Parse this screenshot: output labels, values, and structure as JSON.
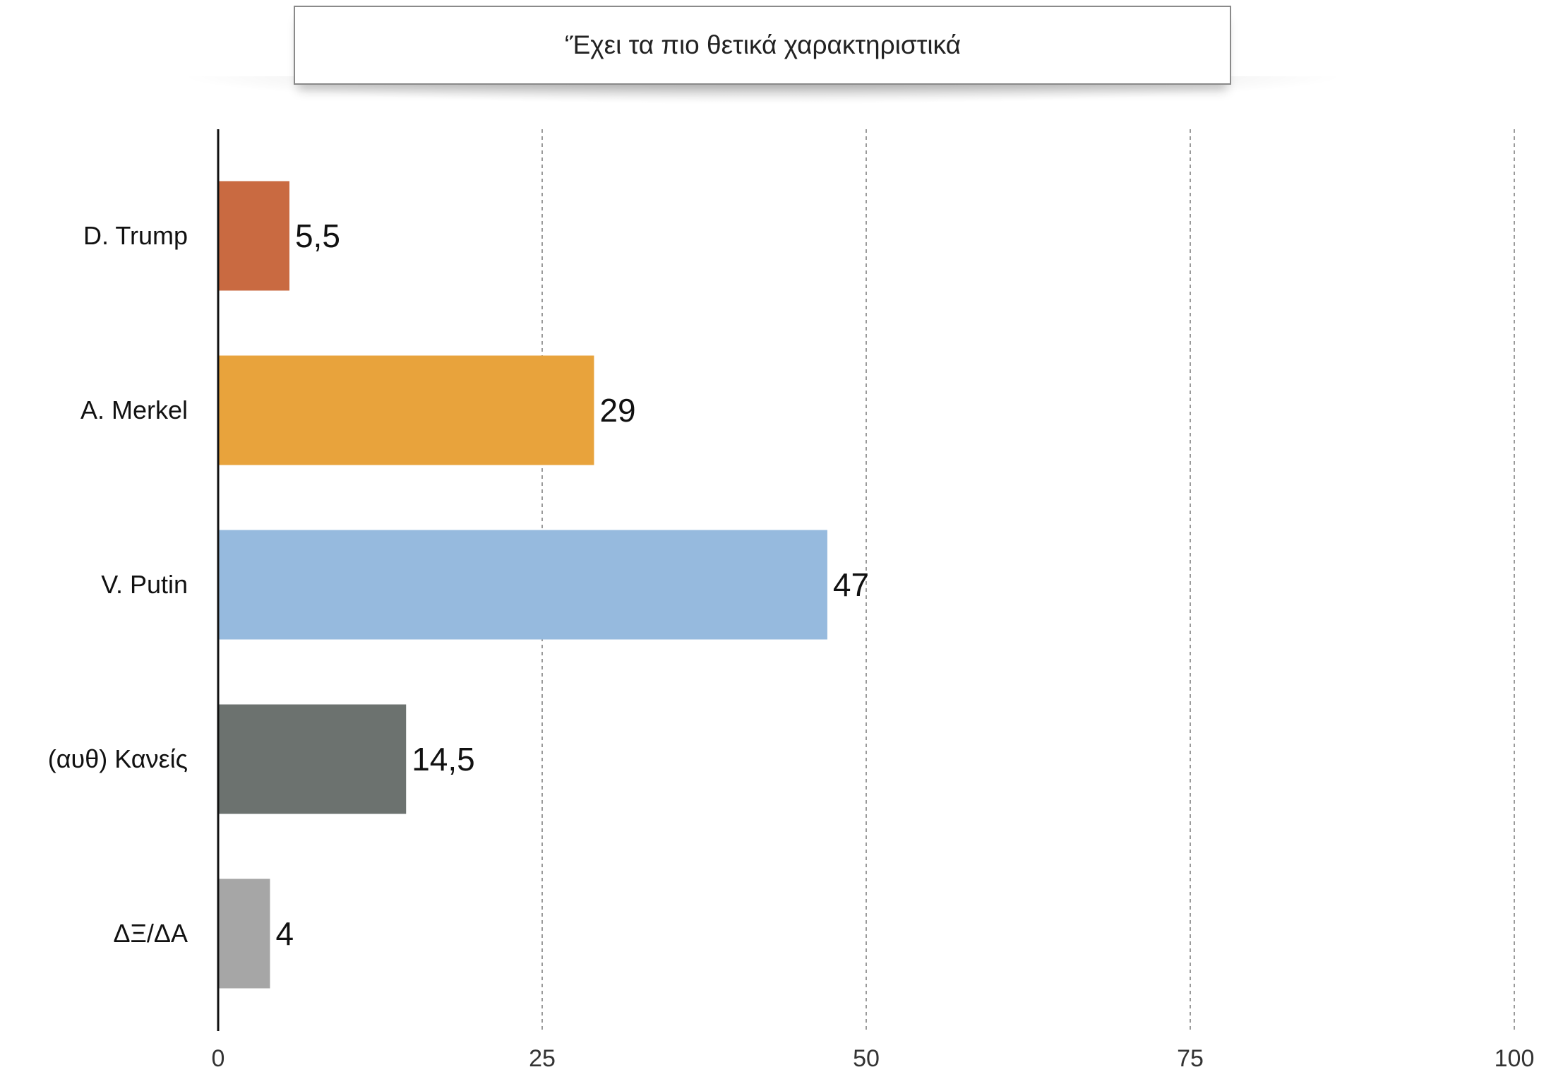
{
  "chart_data": {
    "type": "bar",
    "orientation": "horizontal",
    "title": "‘Έχει τα πιο θετικά χαρακτηριστικά",
    "categories": [
      "D. Trump",
      "A. Merkel",
      "V. Putin",
      "(αυθ) Κανείς",
      "ΔΞ/ΔΑ"
    ],
    "values": [
      5.5,
      29,
      47,
      14.5,
      4
    ],
    "value_labels": [
      "5,5",
      "29",
      "47",
      "14,5",
      "4"
    ],
    "colors": [
      "#c96a41",
      "#e8a33c",
      "#96bade",
      "#6c726f",
      "#a6a6a6"
    ],
    "xlim": [
      0,
      100
    ],
    "xticks": [
      0,
      25,
      50,
      75,
      100
    ],
    "xtick_labels": [
      "0",
      "25",
      "50",
      "75",
      "100"
    ],
    "grid": "vertical dashed",
    "legend": "none"
  }
}
